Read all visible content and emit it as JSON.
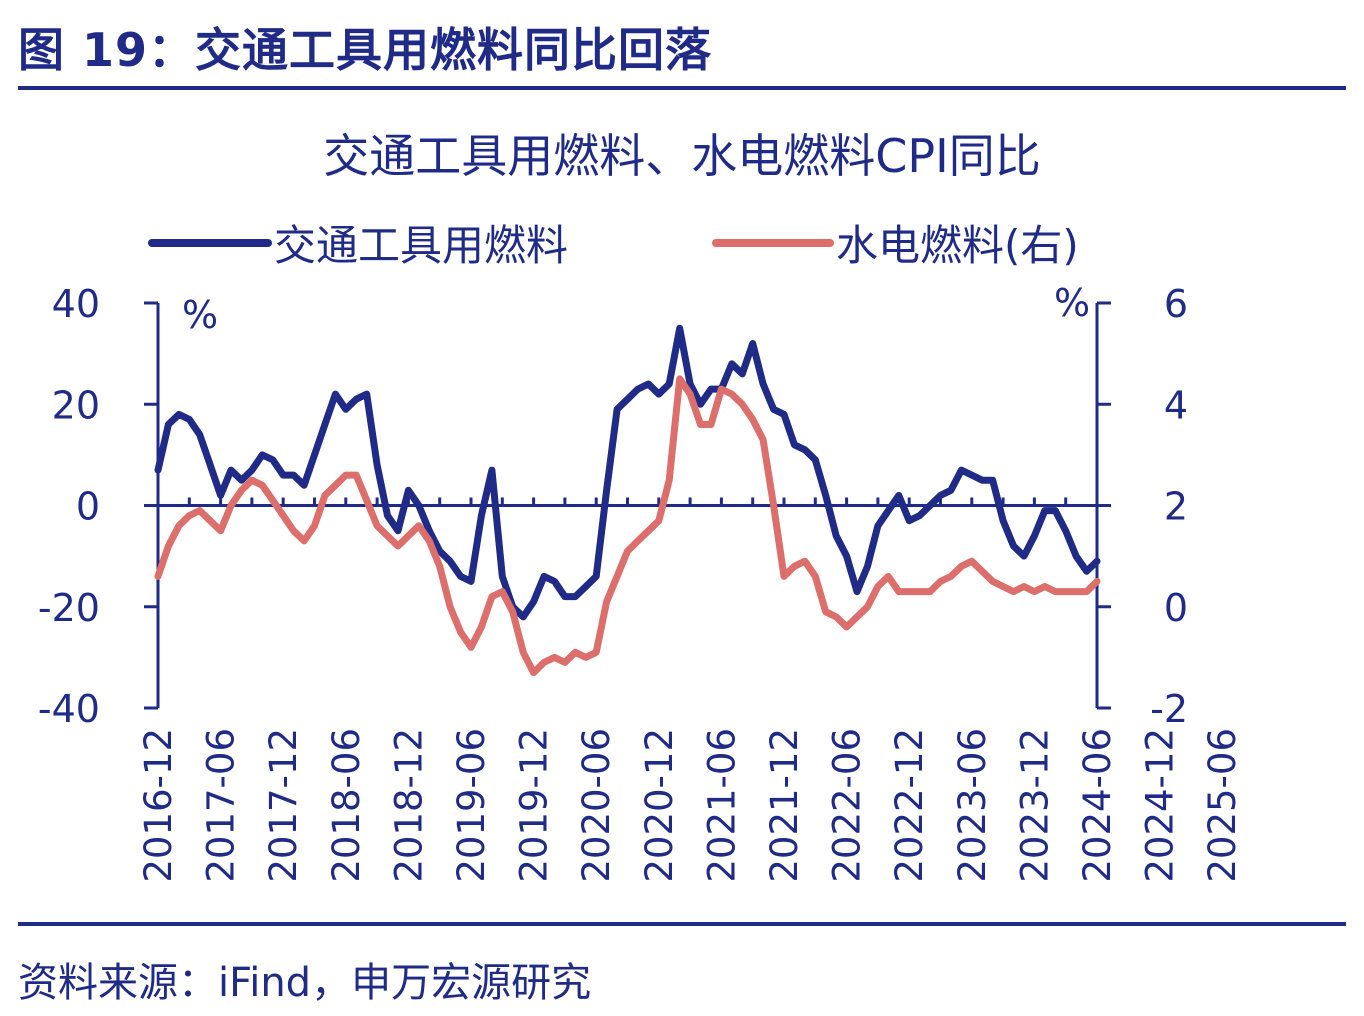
{
  "figure": {
    "title": "图 19：交通工具用燃料同比回落",
    "source": "资料来源：iFind，申万宏源研究"
  },
  "colors": {
    "navy": "#1f2b87",
    "salmon": "#dc6e6c"
  },
  "chart_data": {
    "type": "line",
    "title": "交通工具用燃料、水电燃料CPI同比",
    "left_unit": "%",
    "right_unit": "%",
    "ylim_left": [
      -40,
      40
    ],
    "ylim_right": [
      -2,
      6
    ],
    "yticks_left": [
      "40",
      "20",
      "0",
      "-20",
      "-40"
    ],
    "yticks_right": [
      "6",
      "4",
      "2",
      "0",
      "-2"
    ],
    "grid": false,
    "legend": "top",
    "x_start": "2016-12",
    "x_end": "2025-06",
    "xticks": [
      "2016-12",
      "2017-06",
      "2017-12",
      "2018-06",
      "2018-12",
      "2019-06",
      "2019-12",
      "2020-06",
      "2020-12",
      "2021-06",
      "2021-12",
      "2022-06",
      "2022-12",
      "2023-06",
      "2023-12",
      "2024-06",
      "2024-12",
      "2025-06"
    ],
    "series": [
      {
        "name": "交通工具用燃料",
        "axis": "left",
        "color": "#1f2b87",
        "values": [
          7,
          16,
          18,
          17,
          14,
          8,
          2,
          7,
          5,
          7,
          10,
          9,
          6,
          6,
          4,
          10,
          16,
          22,
          19,
          21,
          22,
          8,
          -2,
          -5,
          3,
          0,
          -5,
          -9,
          -11,
          -14,
          -15,
          -2,
          7,
          -14,
          -20,
          -22,
          -19,
          -14,
          -15,
          -18,
          -18,
          -16,
          -14,
          3,
          19,
          21,
          23,
          24,
          22,
          24,
          35,
          24,
          20,
          23,
          23,
          28,
          26,
          32,
          24,
          19,
          18,
          12,
          11,
          9,
          2,
          -6,
          -10,
          -17,
          -12,
          -4,
          -1,
          2,
          -3,
          -2,
          0,
          2,
          3,
          7,
          6,
          5,
          5,
          -3,
          -8,
          -10,
          -6,
          -1,
          -1,
          -5,
          -10,
          -13,
          -11
        ]
      },
      {
        "name": "水电燃料(右)",
        "axis": "right",
        "color": "#dc6e6c",
        "values": [
          0.6,
          1.2,
          1.6,
          1.8,
          1.9,
          1.7,
          1.5,
          2.0,
          2.3,
          2.5,
          2.4,
          2.1,
          1.8,
          1.5,
          1.3,
          1.6,
          2.2,
          2.4,
          2.6,
          2.6,
          2.1,
          1.6,
          1.4,
          1.2,
          1.4,
          1.6,
          1.3,
          0.8,
          0.0,
          -0.5,
          -0.8,
          -0.4,
          0.2,
          0.3,
          -0.1,
          -0.9,
          -1.3,
          -1.1,
          -1.0,
          -1.1,
          -0.9,
          -1.0,
          -0.9,
          0.1,
          0.6,
          1.1,
          1.3,
          1.5,
          1.7,
          2.5,
          4.5,
          4.2,
          3.6,
          3.6,
          4.3,
          4.2,
          4.0,
          3.7,
          3.3,
          2.0,
          0.6,
          0.8,
          0.9,
          0.6,
          -0.1,
          -0.2,
          -0.4,
          -0.2,
          0.0,
          0.4,
          0.6,
          0.3,
          0.3,
          0.3,
          0.3,
          0.5,
          0.6,
          0.8,
          0.9,
          0.7,
          0.5,
          0.4,
          0.3,
          0.4,
          0.3,
          0.4,
          0.3,
          0.3,
          0.3,
          0.3,
          0.5
        ]
      }
    ]
  }
}
